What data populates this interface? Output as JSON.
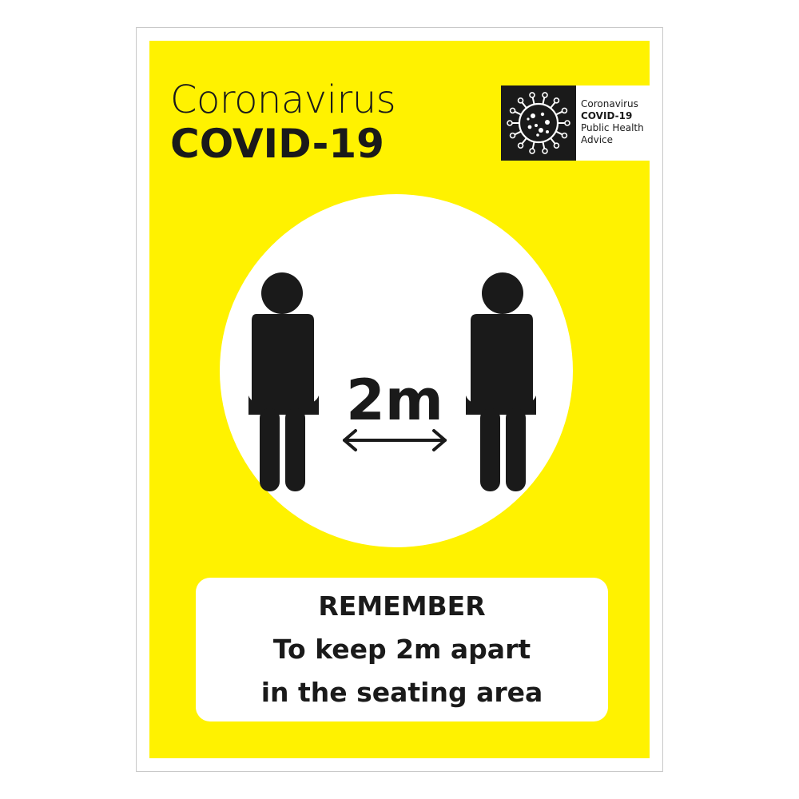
{
  "header": {
    "title_line1": "Coronavirus",
    "title_line2": "COVID-19"
  },
  "badge": {
    "icon": "virus-icon",
    "line1": "Coronavirus",
    "line2": "COVID-19",
    "line3": "Public Health",
    "line4": "Advice"
  },
  "pictogram": {
    "distance_label": "2m",
    "icons": [
      "seated-person-icon",
      "double-arrow-icon",
      "seated-person-icon"
    ]
  },
  "message": {
    "line1": "REMEMBER",
    "line2": "To keep 2m apart",
    "line3": "in the seating area"
  },
  "colors": {
    "background": "#fff200",
    "text": "#1a1a1a",
    "panel": "#ffffff"
  }
}
